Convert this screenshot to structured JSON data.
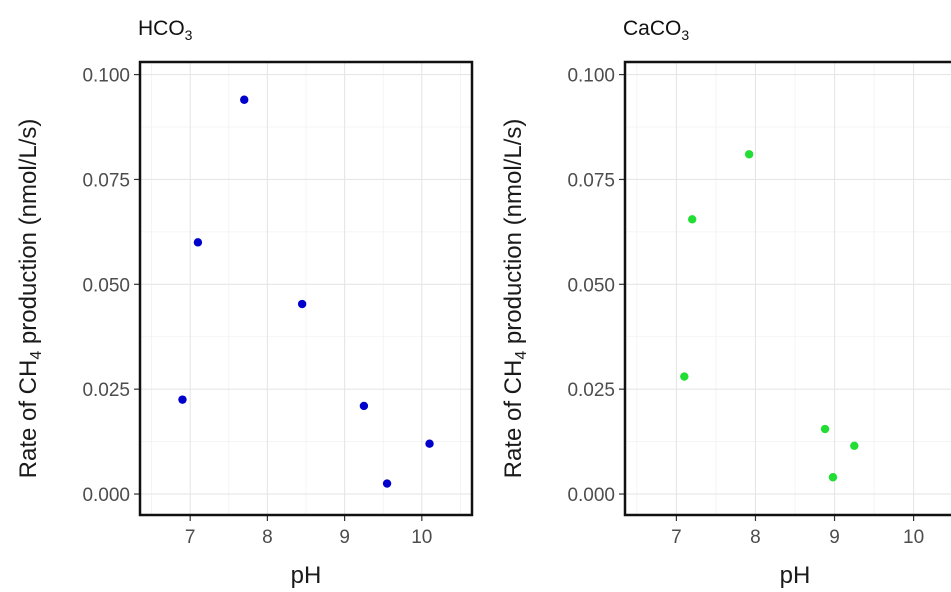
{
  "chart_data": [
    {
      "type": "scatter",
      "title": "HCO3",
      "title_main": "HCO",
      "title_sub": "3",
      "xlabel": "pH",
      "ylabel_pre": "Rate of CH",
      "ylabel_sub": "4",
      "ylabel_post": " production (nmol/L/s)",
      "xlim": [
        6.35,
        10.65
      ],
      "ylim": [
        -0.005,
        0.103
      ],
      "xticks": [
        7,
        8,
        9,
        10
      ],
      "xtick_labels": [
        "7",
        "8",
        "9",
        "10"
      ],
      "yticks": [
        0.0,
        0.025,
        0.05,
        0.075,
        0.1
      ],
      "ytick_labels": [
        "0.000",
        "0.025",
        "0.050",
        "0.075",
        "0.100"
      ],
      "grid": true,
      "point_color": "#0000cc",
      "points": [
        {
          "x": 6.9,
          "y": 0.0225
        },
        {
          "x": 7.1,
          "y": 0.06
        },
        {
          "x": 7.7,
          "y": 0.094
        },
        {
          "x": 8.45,
          "y": 0.0453
        },
        {
          "x": 9.25,
          "y": 0.021
        },
        {
          "x": 9.55,
          "y": 0.0025
        },
        {
          "x": 10.1,
          "y": 0.012
        }
      ]
    },
    {
      "type": "scatter",
      "title": "CaCO3",
      "title_main": "CaCO",
      "title_sub": "3",
      "xlabel": "pH",
      "ylabel_pre": "Rate of CH",
      "ylabel_sub": "4",
      "ylabel_post": " production (nmol/L/s)",
      "xlim": [
        6.35,
        10.65
      ],
      "ylim": [
        -0.005,
        0.103
      ],
      "xticks": [
        7,
        8,
        9,
        10
      ],
      "xtick_labels": [
        "7",
        "8",
        "9",
        "10"
      ],
      "yticks": [
        0.0,
        0.025,
        0.05,
        0.075,
        0.1
      ],
      "ytick_labels": [
        "0.000",
        "0.025",
        "0.050",
        "0.075",
        "0.100"
      ],
      "grid": true,
      "point_color": "#22dd33",
      "points": [
        {
          "x": 7.1,
          "y": 0.028
        },
        {
          "x": 7.2,
          "y": 0.0655
        },
        {
          "x": 7.92,
          "y": 0.081
        },
        {
          "x": 8.88,
          "y": 0.0155
        },
        {
          "x": 8.98,
          "y": 0.004
        },
        {
          "x": 9.25,
          "y": 0.0115
        }
      ]
    }
  ]
}
